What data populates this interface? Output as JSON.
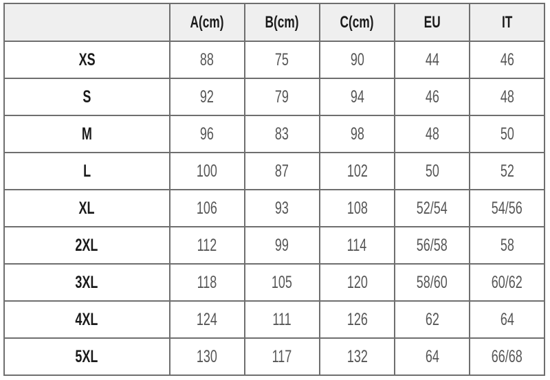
{
  "headers": [
    "",
    "A(cm)",
    "B(cm)",
    "C(cm)",
    "EU",
    "IT"
  ],
  "rows": [
    [
      "XS",
      "88",
      "75",
      "90",
      "44",
      "46"
    ],
    [
      "S",
      "92",
      "79",
      "94",
      "46",
      "48"
    ],
    [
      "M",
      "96",
      "83",
      "98",
      "48",
      "50"
    ],
    [
      "L",
      "100",
      "87",
      "102",
      "50",
      "52"
    ],
    [
      "XL",
      "106",
      "93",
      "108",
      "52/54",
      "54/56"
    ],
    [
      "2XL",
      "112",
      "99",
      "114",
      "56/58",
      "58"
    ],
    [
      "3XL",
      "118",
      "105",
      "120",
      "58/60",
      "60/62"
    ],
    [
      "4XL",
      "124",
      "111",
      "126",
      "62",
      "64"
    ],
    [
      "5XL",
      "130",
      "117",
      "132",
      "64",
      "66/68"
    ]
  ]
}
